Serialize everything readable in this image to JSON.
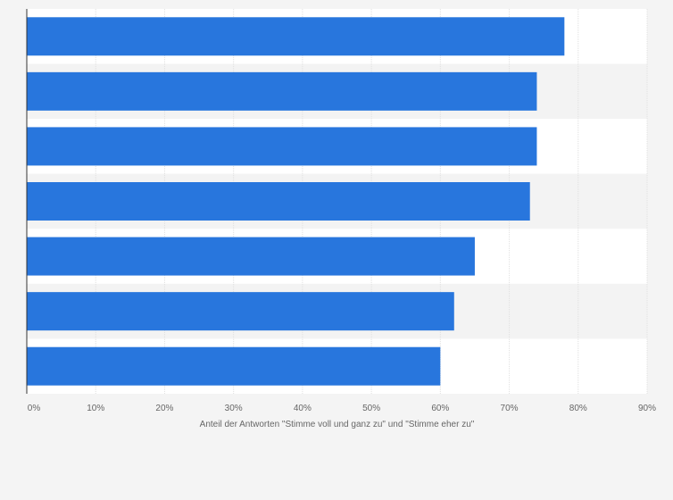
{
  "chart_data": {
    "type": "bar",
    "orientation": "horizontal",
    "categories": [
      "",
      "",
      "",
      "",
      "",
      "",
      ""
    ],
    "values": [
      78,
      74,
      74,
      73,
      65,
      62,
      60
    ],
    "unit": "%",
    "xlim": [
      0,
      90
    ],
    "xticks": [
      "0%",
      "10%",
      "20%",
      "30%",
      "40%",
      "50%",
      "60%",
      "70%",
      "80%",
      "90%"
    ],
    "xlabel": "Anteil der Antworten \"Stimme voll und ganz zu\" und \"Stimme eher zu\"",
    "ylabel": "",
    "title": "",
    "grid": true,
    "legend": "none",
    "colors": {
      "bar": "#2876dd",
      "band_light": "#ffffff",
      "band_dark": "#f3f3f3",
      "grid": "#e0e0e0",
      "axis": "#333333",
      "page": "#f4f4f4"
    }
  }
}
